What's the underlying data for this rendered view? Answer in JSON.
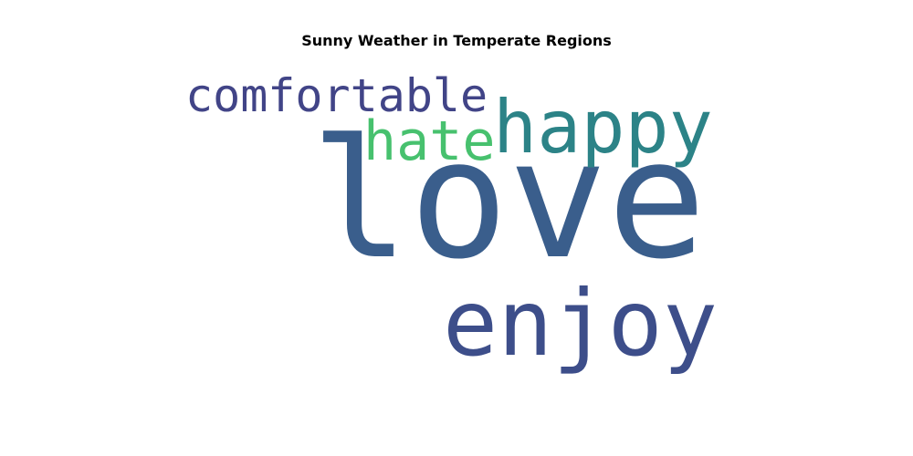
{
  "chart_data": {
    "type": "wordcloud",
    "title": "Sunny Weather in Temperate Regions",
    "words": [
      {
        "text": "love",
        "weight": 1.0,
        "color": "#3a5e8c"
      },
      {
        "text": "enjoy",
        "weight": 0.6,
        "color": "#3d4e8a"
      },
      {
        "text": "happy",
        "weight": 0.5,
        "color": "#2c8387"
      },
      {
        "text": "hate",
        "weight": 0.4,
        "color": "#47c16e"
      },
      {
        "text": "comfortable",
        "weight": 0.35,
        "color": "#414487"
      }
    ]
  }
}
